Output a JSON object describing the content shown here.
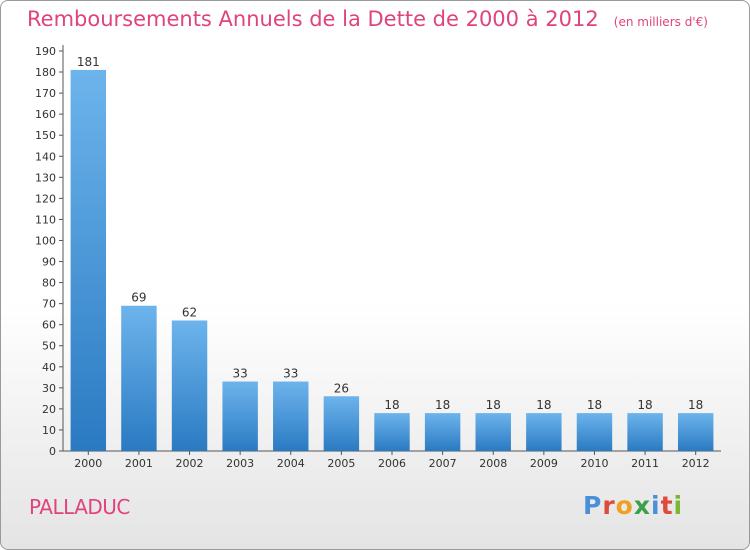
{
  "title": "Remboursements Annuels de la Dette de 2000 à 2012",
  "subtitle": "(en milliers d'€)",
  "commune": "PALLADUC",
  "brand": {
    "name": "Proxiti",
    "letter_colors": [
      "#4a90d9",
      "#e04a3a",
      "#f0a020",
      "#3aa04a",
      "#4a90d9",
      "#e04a3a",
      "#7ab830"
    ]
  },
  "colors": {
    "title": "#e0437d",
    "bar_top": "#6db4ec",
    "bar_bottom": "#2a7ac2"
  },
  "chart_data": {
    "type": "bar",
    "title": "Remboursements Annuels de la Dette de 2000 à 2012",
    "subtitle": "(en milliers d'€)",
    "categories": [
      "2000",
      "2001",
      "2002",
      "2003",
      "2004",
      "2005",
      "2006",
      "2007",
      "2008",
      "2009",
      "2010",
      "2011",
      "2012"
    ],
    "values": [
      181,
      69,
      62,
      33,
      33,
      26,
      18,
      18,
      18,
      18,
      18,
      18,
      18
    ],
    "ylim": [
      0,
      190
    ],
    "ytick_step": 10,
    "grid": false,
    "xlabel": "",
    "ylabel": ""
  }
}
